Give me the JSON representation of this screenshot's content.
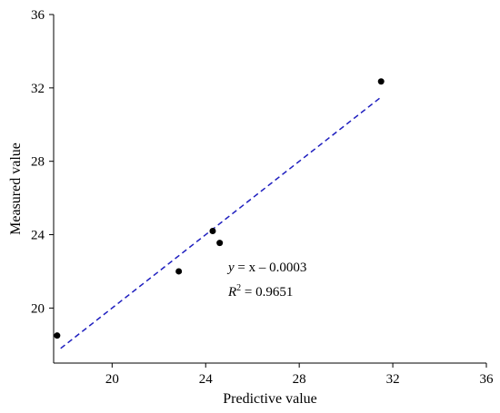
{
  "chart_data": {
    "type": "scatter",
    "xlabel": "Predictive value",
    "ylabel": "Measured value",
    "xlim": [
      17.5,
      36
    ],
    "ylim": [
      17,
      36
    ],
    "xticks": [
      20,
      24,
      28,
      32,
      36
    ],
    "yticks": [
      20,
      24,
      28,
      32,
      36
    ],
    "x_tick_labels": [
      "20",
      "24",
      "28",
      "32",
      "36"
    ],
    "y_tick_labels": [
      "20",
      "24",
      "28",
      "32",
      "36"
    ],
    "grid": false,
    "points": [
      {
        "x": 17.65,
        "y": 18.5
      },
      {
        "x": 22.85,
        "y": 22.0
      },
      {
        "x": 24.3,
        "y": 24.2
      },
      {
        "x": 24.6,
        "y": 23.55
      },
      {
        "x": 31.5,
        "y": 32.35
      }
    ],
    "fit_line": {
      "slope": 1,
      "intercept": -0.0003,
      "x_range": [
        17.8,
        31.5
      ],
      "color": "#1f1fbf",
      "style": "dashed"
    },
    "point_color": "#000000",
    "annotation": {
      "equation_y": "y",
      "equation_rest": " = x – 0.0003",
      "r2_letter": "R",
      "r2_exp": "2",
      "r2_rest": " = 0.9651"
    }
  }
}
